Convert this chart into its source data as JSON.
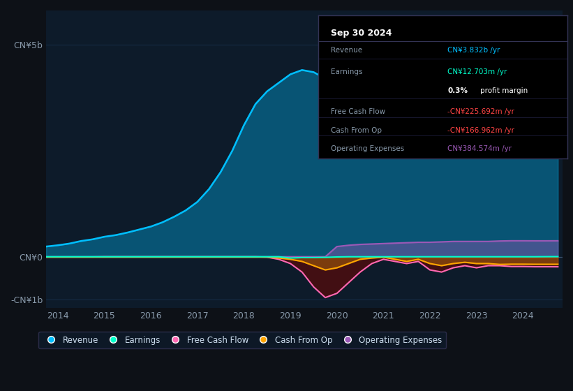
{
  "background_color": "#0d1117",
  "plot_bg_color": "#0d1b2a",
  "title": "Sep 30 2024",
  "years": [
    2013.75,
    2014.0,
    2014.25,
    2014.5,
    2014.75,
    2015.0,
    2015.25,
    2015.5,
    2015.75,
    2016.0,
    2016.25,
    2016.5,
    2016.75,
    2017.0,
    2017.25,
    2017.5,
    2017.75,
    2018.0,
    2018.25,
    2018.5,
    2018.75,
    2019.0,
    2019.25,
    2019.5,
    2019.75,
    2020.0,
    2020.25,
    2020.5,
    2020.75,
    2021.0,
    2021.25,
    2021.5,
    2021.75,
    2022.0,
    2022.25,
    2022.5,
    2022.75,
    2023.0,
    2023.25,
    2023.5,
    2023.75,
    2024.0,
    2024.25,
    2024.5,
    2024.75
  ],
  "revenue": [
    0.25,
    0.28,
    0.32,
    0.38,
    0.42,
    0.48,
    0.52,
    0.58,
    0.65,
    0.72,
    0.82,
    0.95,
    1.1,
    1.3,
    1.6,
    2.0,
    2.5,
    3.1,
    3.6,
    3.9,
    4.1,
    4.3,
    4.4,
    4.35,
    4.2,
    3.85,
    3.8,
    3.9,
    3.95,
    4.0,
    4.05,
    4.1,
    4.15,
    4.0,
    3.5,
    2.8,
    2.5,
    3.0,
    4.2,
    5.2,
    4.8,
    4.5,
    3.9,
    3.85,
    3.83
  ],
  "earnings": [
    0.01,
    0.01,
    0.01,
    0.01,
    0.01,
    0.01,
    0.01,
    0.01,
    0.01,
    0.01,
    0.01,
    0.01,
    0.01,
    0.01,
    0.01,
    0.01,
    0.01,
    0.01,
    0.01,
    0.01,
    0.01,
    -0.02,
    -0.01,
    -0.01,
    -0.005,
    0.005,
    0.01,
    0.01,
    0.01,
    0.01,
    0.01,
    0.01,
    0.01,
    0.01,
    0.01,
    0.01,
    0.01,
    0.01,
    0.01,
    0.01,
    0.01,
    0.01,
    0.01,
    0.012,
    0.0127
  ],
  "free_cash_flow": [
    0.005,
    0.005,
    0.005,
    0.005,
    0.005,
    0.01,
    0.01,
    0.01,
    0.01,
    0.01,
    0.01,
    0.01,
    0.01,
    0.01,
    0.01,
    0.01,
    0.01,
    0.01,
    0.01,
    0.0,
    -0.05,
    -0.15,
    -0.35,
    -0.7,
    -0.95,
    -0.85,
    -0.6,
    -0.35,
    -0.15,
    -0.05,
    -0.1,
    -0.15,
    -0.1,
    -0.3,
    -0.35,
    -0.25,
    -0.2,
    -0.25,
    -0.2,
    -0.2,
    -0.22,
    -0.22,
    -0.225,
    -0.225,
    -0.226
  ],
  "cash_from_op": [
    0.005,
    0.005,
    0.005,
    0.005,
    0.005,
    0.005,
    0.005,
    0.005,
    0.005,
    0.005,
    0.005,
    0.005,
    0.005,
    0.005,
    0.005,
    0.005,
    0.005,
    0.005,
    0.005,
    0.005,
    -0.02,
    -0.05,
    -0.1,
    -0.2,
    -0.3,
    -0.25,
    -0.15,
    -0.05,
    -0.02,
    0.0,
    -0.05,
    -0.1,
    -0.05,
    -0.15,
    -0.2,
    -0.15,
    -0.12,
    -0.15,
    -0.15,
    -0.17,
    -0.165,
    -0.165,
    -0.167,
    -0.167,
    -0.167
  ],
  "operating_expenses": [
    0.01,
    0.01,
    0.01,
    0.01,
    0.01,
    0.01,
    0.01,
    0.01,
    0.01,
    0.01,
    0.01,
    0.01,
    0.01,
    0.01,
    0.01,
    0.01,
    0.01,
    0.01,
    0.01,
    0.01,
    0.01,
    0.01,
    0.01,
    0.01,
    0.01,
    0.25,
    0.28,
    0.3,
    0.31,
    0.32,
    0.33,
    0.34,
    0.35,
    0.35,
    0.36,
    0.37,
    0.37,
    0.37,
    0.37,
    0.38,
    0.385,
    0.385,
    0.384,
    0.384,
    0.385
  ],
  "revenue_color": "#00bfff",
  "earnings_color": "#00ffcc",
  "free_cash_flow_color": "#ff69b4",
  "cash_from_op_color": "#ffa500",
  "operating_expenses_color": "#9b59b6",
  "grid_color": "#1e3a5f",
  "tick_color": "#8899aa",
  "label_color": "#ccddee",
  "ylim_min": -1.2,
  "ylim_max": 5.8,
  "yticks": [
    -1.0,
    0.0,
    5.0
  ],
  "ytick_labels": [
    "-CN¥1b",
    "CN¥0",
    "CN¥5b"
  ],
  "xtick_years": [
    2014,
    2015,
    2016,
    2017,
    2018,
    2019,
    2020,
    2021,
    2022,
    2023,
    2024
  ],
  "legend_labels": [
    "Revenue",
    "Earnings",
    "Free Cash Flow",
    "Cash From Op",
    "Operating Expenses"
  ],
  "legend_colors": [
    "#00bfff",
    "#00ffcc",
    "#ff69b4",
    "#ffa500",
    "#9b59b6"
  ],
  "info_rows": [
    {
      "label": "Revenue",
      "value": "CN¥3.832b /yr",
      "value_color": "#00bfff",
      "sub": null
    },
    {
      "label": "Earnings",
      "value": "CN¥12.703m /yr",
      "value_color": "#00ffcc",
      "sub": "0.3% profit margin"
    },
    {
      "label": "Free Cash Flow",
      "value": "-CN¥225.692m /yr",
      "value_color": "#ff4444",
      "sub": null
    },
    {
      "label": "Cash From Op",
      "value": "-CN¥166.962m /yr",
      "value_color": "#ff4444",
      "sub": null
    },
    {
      "label": "Operating Expenses",
      "value": "CN¥384.574m /yr",
      "value_color": "#9b59b6",
      "sub": null
    }
  ]
}
